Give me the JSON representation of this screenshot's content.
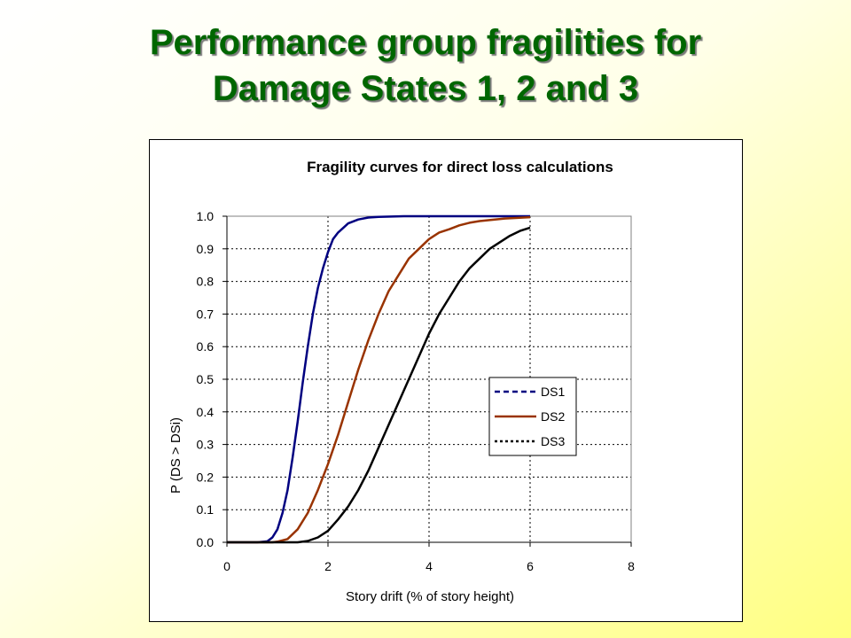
{
  "slide": {
    "title_line1": "Performance group fragilities for",
    "title_line2": "Damage States 1, 2 and 3"
  },
  "colors": {
    "title": "#006600",
    "ds1": "#000080",
    "ds2": "#993300",
    "ds3": "#000000"
  },
  "chart_data": {
    "type": "line",
    "title": "Fragility curves for direct loss calculations",
    "xlabel": "Story drift (% of story height)",
    "ylabel": "P (DS > DSi)",
    "xlim": [
      0,
      8
    ],
    "ylim": [
      0,
      1
    ],
    "xticks": [
      0,
      2,
      4,
      6,
      8
    ],
    "xtick_labels": [
      "0",
      "2",
      "4",
      "6",
      "8"
    ],
    "yticks": [
      0,
      0.1,
      0.2,
      0.3,
      0.4,
      0.5,
      0.6,
      0.7,
      0.8,
      0.9,
      1.0
    ],
    "ytick_labels": [
      "0.0",
      "0.1",
      "0.2",
      "0.3",
      "0.4",
      "0.5",
      "0.6",
      "0.7",
      "0.8",
      "0.9",
      "1.0"
    ],
    "grid": true,
    "legend_position": "right-middle",
    "series": [
      {
        "name": "DS1",
        "color": "#000080",
        "style": "dashed",
        "x": [
          0,
          0.6,
          0.8,
          0.9,
          1.0,
          1.1,
          1.2,
          1.3,
          1.4,
          1.5,
          1.6,
          1.7,
          1.8,
          1.9,
          2.0,
          2.1,
          2.2,
          2.4,
          2.6,
          2.8,
          3.0,
          3.5,
          4.0,
          5.0,
          6.0
        ],
        "y": [
          0,
          0.0,
          0.003,
          0.015,
          0.04,
          0.09,
          0.16,
          0.26,
          0.37,
          0.49,
          0.6,
          0.7,
          0.78,
          0.84,
          0.89,
          0.93,
          0.95,
          0.978,
          0.99,
          0.996,
          0.998,
          1.0,
          1.0,
          1.0,
          1.0
        ]
      },
      {
        "name": "DS2",
        "color": "#993300",
        "style": "solid",
        "x": [
          0,
          0.9,
          1.0,
          1.2,
          1.4,
          1.6,
          1.8,
          2.0,
          2.2,
          2.4,
          2.6,
          2.8,
          3.0,
          3.2,
          3.4,
          3.6,
          3.8,
          4.0,
          4.2,
          4.4,
          4.6,
          4.8,
          5.0,
          5.5,
          6.0
        ],
        "y": [
          0,
          0.0,
          0.002,
          0.01,
          0.04,
          0.09,
          0.16,
          0.24,
          0.33,
          0.43,
          0.53,
          0.62,
          0.7,
          0.77,
          0.82,
          0.87,
          0.9,
          0.93,
          0.95,
          0.96,
          0.972,
          0.98,
          0.985,
          0.993,
          0.997
        ]
      },
      {
        "name": "DS3",
        "color": "#000000",
        "style": "dotted",
        "x": [
          0,
          1.4,
          1.6,
          1.8,
          2.0,
          2.2,
          2.4,
          2.6,
          2.8,
          3.0,
          3.2,
          3.4,
          3.6,
          3.8,
          4.0,
          4.2,
          4.4,
          4.6,
          4.8,
          5.0,
          5.2,
          5.4,
          5.6,
          5.8,
          6.0
        ],
        "y": [
          0,
          0.0,
          0.004,
          0.015,
          0.035,
          0.07,
          0.11,
          0.16,
          0.22,
          0.29,
          0.36,
          0.43,
          0.5,
          0.57,
          0.64,
          0.7,
          0.75,
          0.8,
          0.84,
          0.87,
          0.9,
          0.92,
          0.94,
          0.955,
          0.965
        ]
      }
    ]
  }
}
